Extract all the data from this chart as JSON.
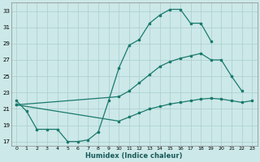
{
  "xlabel": "Humidex (Indice chaleur)",
  "bg_color": "#cce8e8",
  "grid_color": "#aacece",
  "line_color": "#1a7a6e",
  "xlim": [
    -0.5,
    23.5
  ],
  "ylim": [
    16.5,
    34.0
  ],
  "yticks": [
    17,
    19,
    21,
    23,
    25,
    27,
    29,
    31,
    33
  ],
  "xticks": [
    0,
    1,
    2,
    3,
    4,
    5,
    6,
    7,
    8,
    9,
    10,
    11,
    12,
    13,
    14,
    15,
    16,
    17,
    18,
    19,
    20,
    21,
    22,
    23
  ],
  "l1x": [
    0,
    1,
    2,
    3,
    4,
    5,
    6,
    7,
    8,
    9,
    10,
    11,
    12,
    13,
    14,
    15,
    16,
    17,
    18,
    19
  ],
  "l1y": [
    22.0,
    20.7,
    18.5,
    18.5,
    18.5,
    17.0,
    17.0,
    17.2,
    18.2,
    22.0,
    26.0,
    28.8,
    29.5,
    31.5,
    32.5,
    33.2,
    33.2,
    31.5,
    31.5,
    29.3
  ],
  "l2x": [
    0,
    10,
    11,
    12,
    13,
    14,
    15,
    16,
    17,
    18,
    19,
    20,
    21,
    22
  ],
  "l2y": [
    21.5,
    22.5,
    23.2,
    24.2,
    25.2,
    26.2,
    26.8,
    27.2,
    27.5,
    27.8,
    27.0,
    27.0,
    25.0,
    23.2
  ],
  "l3x": [
    0,
    10,
    11,
    12,
    13,
    14,
    15,
    16,
    17,
    18,
    19,
    20,
    21,
    22,
    23
  ],
  "l3y": [
    21.5,
    19.5,
    20.0,
    20.5,
    21.0,
    21.3,
    21.6,
    21.8,
    22.0,
    22.2,
    22.3,
    22.2,
    22.0,
    21.8,
    22.0
  ]
}
